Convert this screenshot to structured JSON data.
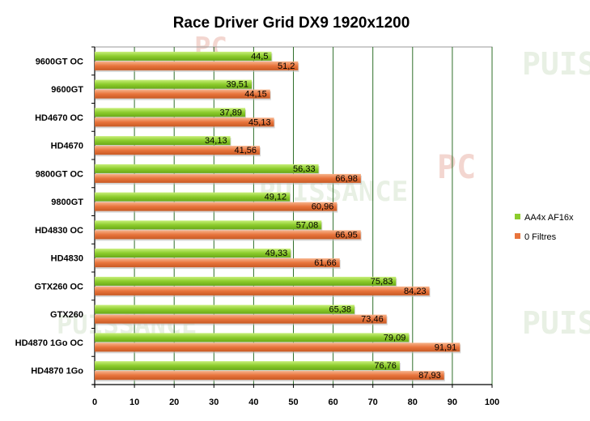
{
  "chart_data": {
    "type": "bar",
    "orientation": "horizontal",
    "title": "Race Driver Grid DX9 1920x1200",
    "xlabel": "",
    "ylabel": "",
    "xlim": [
      0,
      100
    ],
    "x_ticks": [
      "0",
      "10",
      "20",
      "30",
      "40",
      "50",
      "60",
      "70",
      "80",
      "90",
      "100"
    ],
    "grid": true,
    "legend_position": "right",
    "categories": [
      "9600GT OC",
      "9600GT",
      "HD4670 OC",
      "HD4670",
      "9800GT OC",
      "9800GT",
      "HD4830 OC",
      "HD4830",
      "GTX260 OC",
      "GTX260",
      "HD4870 1Go OC",
      "HD4870 1Go"
    ],
    "series": [
      {
        "name": "AA4x AF16x",
        "color": "#8ccc2c",
        "values": [
          44.5,
          39.51,
          37.89,
          34.13,
          56.33,
          49.12,
          57.08,
          49.33,
          75.83,
          65.38,
          79.09,
          76.76
        ],
        "labels": [
          "44,5",
          "39,51",
          "37,89",
          "34,13",
          "56,33",
          "49,12",
          "57,08",
          "49,33",
          "75,83",
          "65,38",
          "79,09",
          "76,76"
        ]
      },
      {
        "name": "0 Filtres",
        "color": "#e8743c",
        "values": [
          51.2,
          44.15,
          45.13,
          41.56,
          66.98,
          60.96,
          66.95,
          61.66,
          84.23,
          73.46,
          91.91,
          87.93
        ],
        "labels": [
          "51,2",
          "44,15",
          "45,13",
          "41,56",
          "66,98",
          "60,96",
          "66,95",
          "61,66",
          "84,23",
          "73,46",
          "91,91",
          "87,93"
        ]
      }
    ]
  },
  "watermarks": [
    "PUIS",
    "PUISSANCE",
    "PC",
    "PUISSANCE",
    "PUIS",
    "PC"
  ]
}
